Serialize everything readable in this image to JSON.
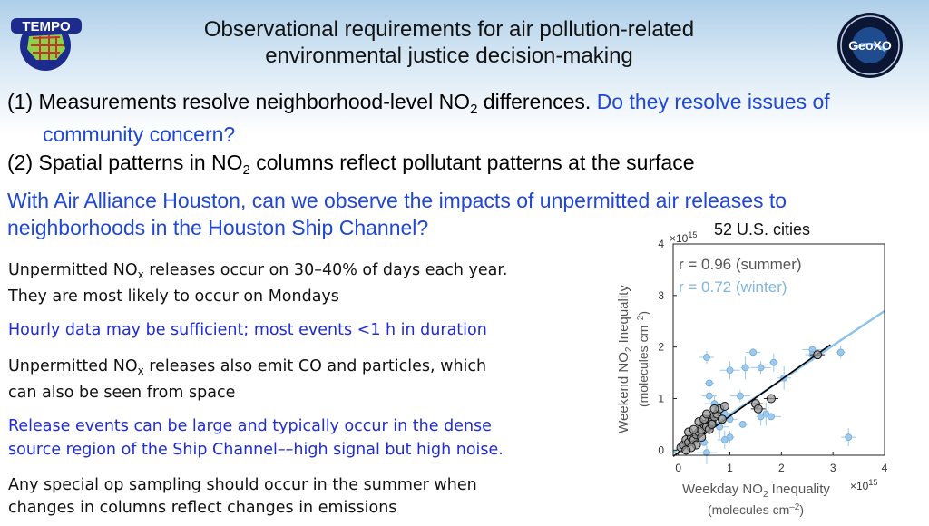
{
  "header": {
    "title_line1": "Observational requirements for air pollution-related",
    "title_line2": "environmental justice decision-making",
    "logo_left_text": "TEMPO",
    "logo_right_text": "GeoXO"
  },
  "points": {
    "p1_a": "(1) Measurements resolve neighborhood-level NO",
    "p1_sub": "2",
    "p1_b": " differences. ",
    "p1_c": "Do they resolve issues of",
    "p1_d": "community concern?",
    "p2_a": "(2) Spatial patterns in NO",
    "p2_sub": "2",
    "p2_b": " columns reflect pollutant patterns at the surface",
    "houston_1": "With Air Alliance Houston, can we observe the impacts of unpermitted air releases to",
    "houston_2": "neighborhoods in the Houston Ship Channel?"
  },
  "bullets": {
    "b1_a": "Unpermitted NO",
    "b1_sub": "x",
    "b1_b": " releases occur on 30–40% of days each year.",
    "b1_c": "They are most likely to occur on Mondays",
    "b2": "Hourly data may be sufficient; most events <1 h in duration",
    "b3_a": "Unpermitted NO",
    "b3_sub": "x",
    "b3_b": " releases also emit CO and particles, which",
    "b3_c": "can also be seen from space",
    "b4_a": "Release events can be large and typically occur in the dense",
    "b4_b": "source region of the Ship Channel––high signal but high noise.",
    "b5_a": "Any special op sampling should occur in the summer when",
    "b5_b": "changes in columns reflect changes in emissions"
  },
  "chart_data": {
    "type": "scatter",
    "title": "52 U.S. cities",
    "xlabel_line1": "Weekday NO",
    "xlabel_sub": "2",
    "xlabel_after": " Inequality",
    "xlabel_line2": "(molecules cm",
    "xlabel_line2_sup": "–2",
    "xlabel_line2_end": ")",
    "ylabel_line1_a": "Weekend NO",
    "ylabel_line1_sub": "2",
    "ylabel_line1_b": " Inequality",
    "ylabel_line2_a": "(molecules cm",
    "ylabel_line2_sup": "–2",
    "ylabel_line2_b": ")",
    "x_multiplier": "×10",
    "x_multiplier_exp": "15",
    "y_multiplier": "×10",
    "y_multiplier_exp": "15",
    "xlim": [
      -0.1,
      4
    ],
    "ylim": [
      -0.1,
      4
    ],
    "xticks": [
      "0",
      "1",
      "2",
      "3",
      "4"
    ],
    "yticks": [
      "0",
      "1",
      "2",
      "3",
      "4"
    ],
    "annotations": {
      "summer_r": "r = 0.96 (summer)",
      "winter_r": "r = 0.72 (winter)",
      "summer_color": "#555555",
      "winter_color": "#7fb6e0"
    },
    "fit_summer": {
      "slope": 0.71,
      "intercept": -0.05,
      "color": "#000000"
    },
    "fit_winter": {
      "slope": 0.67,
      "intercept": 0.02,
      "color": "#8ec3ea"
    },
    "series": [
      {
        "name": "summer",
        "color": "#9a9a9a",
        "points": [
          [
            0.05,
            0.05
          ],
          [
            0.1,
            0.1
          ],
          [
            0.15,
            0.2
          ],
          [
            0.2,
            0.15
          ],
          [
            0.25,
            0.25
          ],
          [
            0.3,
            0.2
          ],
          [
            0.35,
            0.3
          ],
          [
            0.4,
            0.35
          ],
          [
            0.45,
            0.4
          ],
          [
            0.5,
            0.5
          ],
          [
            0.55,
            0.45
          ],
          [
            0.6,
            0.6
          ],
          [
            0.2,
            0.35
          ],
          [
            0.3,
            0.4
          ],
          [
            0.4,
            0.55
          ],
          [
            0.5,
            0.6
          ],
          [
            0.65,
            0.55
          ],
          [
            0.7,
            0.65
          ],
          [
            0.75,
            0.7
          ],
          [
            0.8,
            0.8
          ],
          [
            0.45,
            0.25
          ],
          [
            0.35,
            0.1
          ],
          [
            0.6,
            0.4
          ],
          [
            0.25,
            0.05
          ],
          [
            0.85,
            0.6
          ],
          [
            0.9,
            0.85
          ],
          [
            1.5,
            0.9
          ],
          [
            1.55,
            0.8
          ],
          [
            1.8,
            1.0
          ],
          [
            2.7,
            1.85
          ],
          [
            0.55,
            0.7
          ],
          [
            0.15,
            0.0
          ],
          [
            0.65,
            0.5
          ],
          [
            0.7,
            0.8
          ]
        ]
      },
      {
        "name": "winter",
        "color": "#9cc9ec",
        "points": [
          [
            0.5,
            0.15
          ],
          [
            0.6,
            1.05
          ],
          [
            0.7,
            0.9
          ],
          [
            0.9,
            0.7
          ],
          [
            1.0,
            0.6
          ],
          [
            1.2,
            1.05
          ],
          [
            1.6,
            0.65
          ],
          [
            1.7,
            0.7
          ],
          [
            1.8,
            0.65
          ],
          [
            1.0,
            0.25
          ],
          [
            0.9,
            0.2
          ],
          [
            0.55,
            -0.05
          ],
          [
            0.6,
            1.3
          ],
          [
            0.55,
            1.8
          ],
          [
            1.0,
            1.55
          ],
          [
            1.3,
            1.6
          ],
          [
            1.45,
            1.9
          ],
          [
            1.6,
            1.6
          ],
          [
            1.85,
            1.7
          ],
          [
            2.05,
            1.4
          ],
          [
            2.6,
            1.95
          ],
          [
            3.15,
            1.9
          ],
          [
            3.3,
            0.25
          ],
          [
            0.8,
            0.45
          ],
          [
            1.25,
            0.5
          ],
          [
            2.6,
            1.85
          ]
        ]
      }
    ]
  }
}
